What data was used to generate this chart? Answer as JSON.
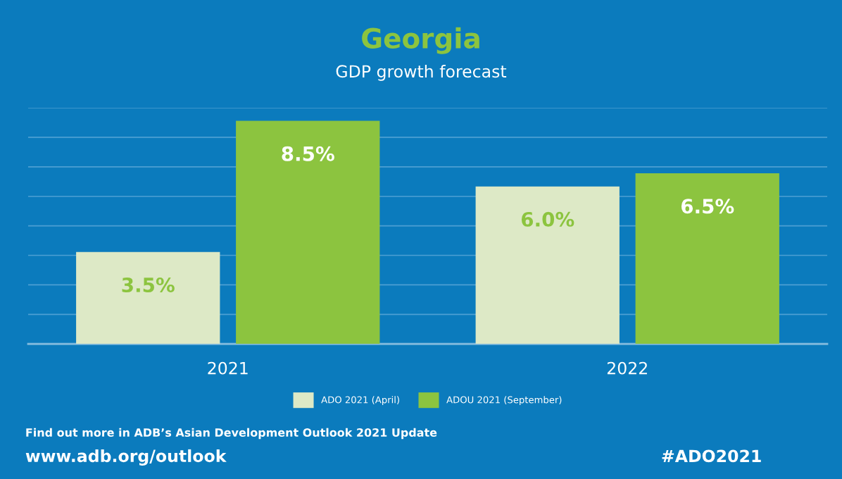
{
  "chart_data": {
    "type": "bar",
    "title": "Georgia",
    "subtitle": "GDP growth forecast",
    "categories": [
      "2021",
      "2022"
    ],
    "series": [
      {
        "name": "ADO 2021 (April)",
        "color": "#dde9c6",
        "values": [
          3.5,
          6.0
        ],
        "value_labels": [
          "3.5%",
          "6.0%"
        ]
      },
      {
        "name": "ADOU 2021 (September)",
        "color": "#8cc43f",
        "values": [
          8.5,
          6.5
        ],
        "value_labels": [
          "8.5%",
          "6.5%"
        ]
      }
    ],
    "ylim": [
      0,
      9
    ],
    "yticks": [
      {
        "value": 0,
        "label": null
      },
      {
        "value": 1.125,
        "label": null
      },
      {
        "value": 2.25,
        "label": null
      },
      {
        "value": 3.375,
        "label": null
      },
      {
        "value": 4.5,
        "label": null
      },
      {
        "value": 5.625,
        "label": null
      },
      {
        "value": 6.75,
        "label": null
      },
      {
        "value": 7.875,
        "label": null
      },
      {
        "value": 9,
        "label": null
      }
    ],
    "tick_labels": "x",
    "grid": "y",
    "legend": "bottom",
    "annotations": [
      "Find out more in ADB’s Asian Development Outlook 2021 Update",
      "www.adb.org/outlook",
      "#ADO2021"
    ]
  }
}
